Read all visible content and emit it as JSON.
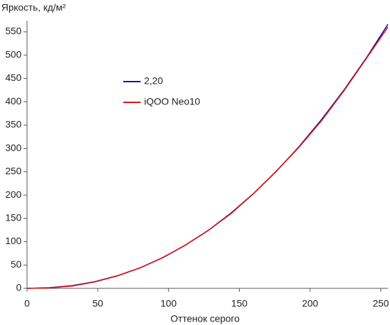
{
  "chart_data": {
    "type": "line",
    "y_axis_label": "Яркость, кд/м²",
    "x_axis_label": "Оттенок серого",
    "x": [
      0,
      16,
      32,
      48,
      64,
      80,
      96,
      112,
      128,
      144,
      160,
      176,
      192,
      208,
      224,
      240,
      255
    ],
    "series": [
      {
        "name": "2,20",
        "color": "#1010b0",
        "values": [
          0,
          1.3,
          5.9,
          14.4,
          27.1,
          44.2,
          66.0,
          92.6,
          124.3,
          161.0,
          203.1,
          250.4,
          303.2,
          361.6,
          425.5,
          495.3,
          566
        ]
      },
      {
        "name": "iQOO Neo10",
        "color": "#e01010",
        "values": [
          0,
          1,
          5,
          14,
          27,
          44,
          66,
          93,
          124,
          160,
          203,
          251,
          302,
          359,
          424,
          494,
          560
        ]
      }
    ],
    "xlim": [
      0,
      255
    ],
    "xticks": [
      0,
      50,
      100,
      150,
      200,
      250
    ],
    "ylim": [
      0,
      570
    ],
    "yticks": [
      0,
      50,
      100,
      150,
      200,
      250,
      300,
      350,
      400,
      450,
      500,
      550
    ],
    "grid": false,
    "legend_position": "upper-left"
  }
}
